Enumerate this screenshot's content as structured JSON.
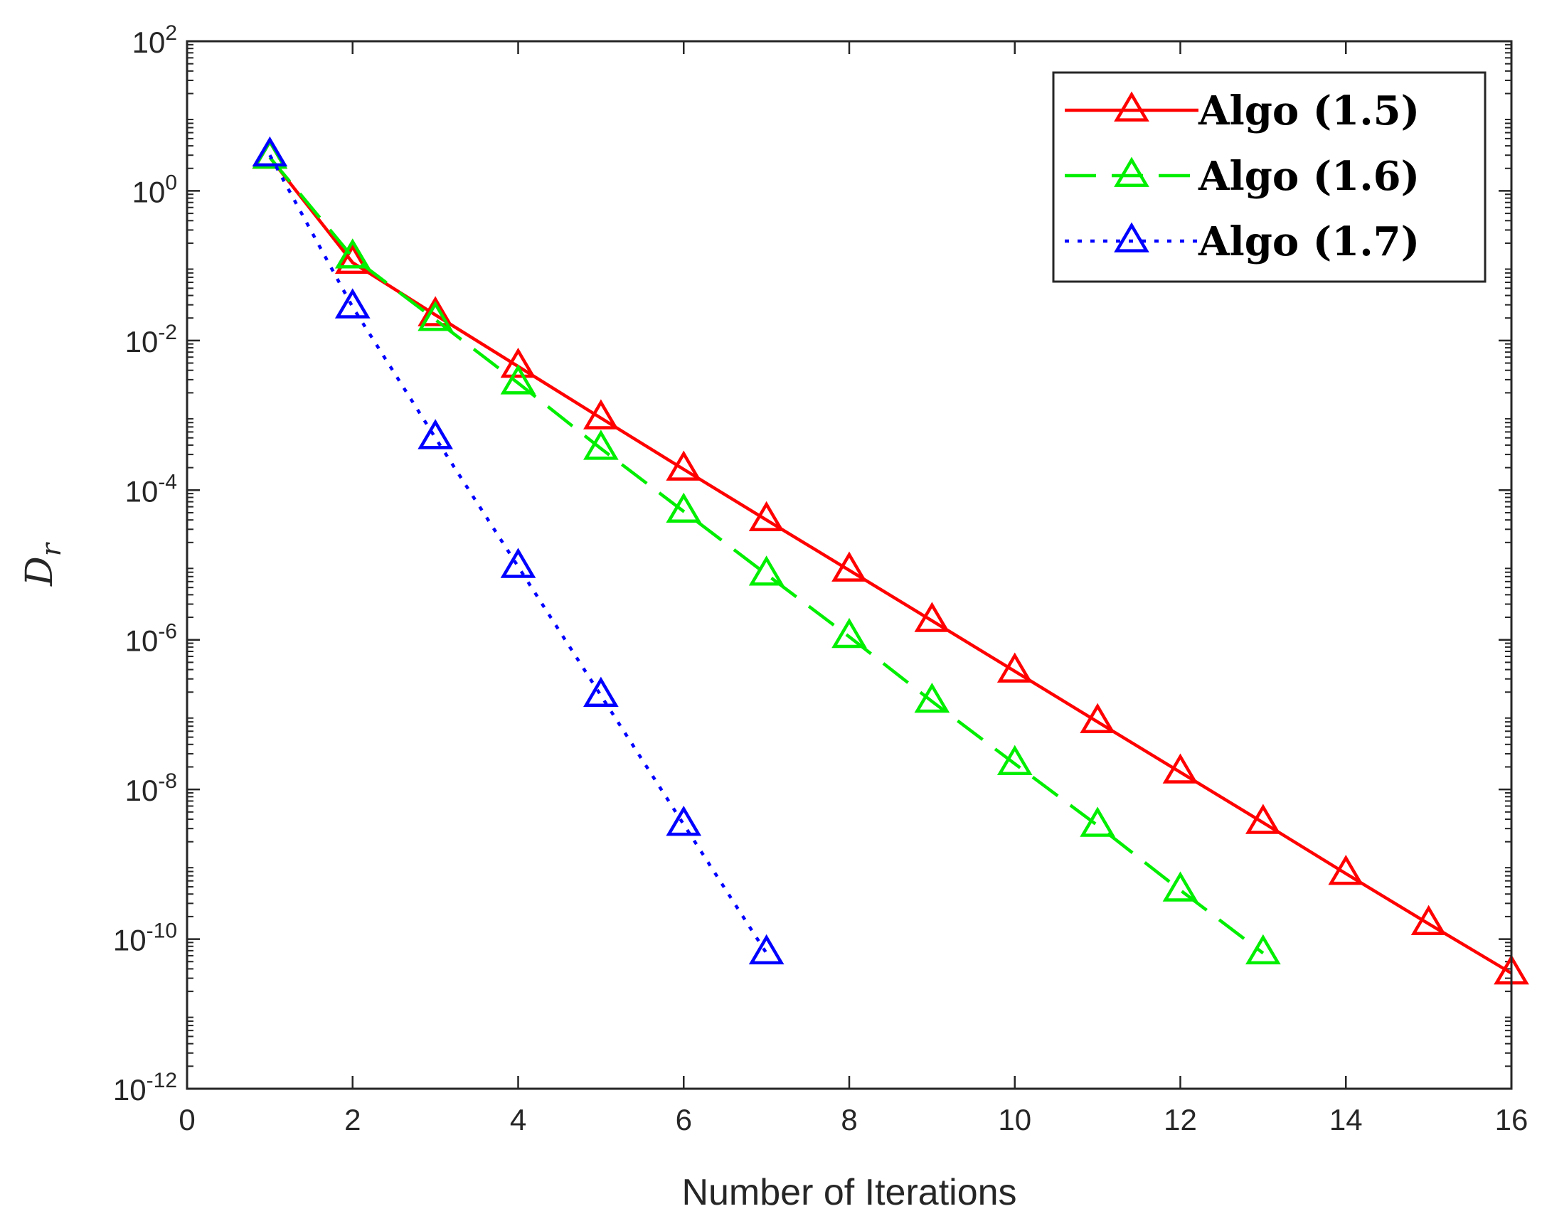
{
  "chart_data": {
    "type": "line",
    "title": "",
    "xlabel": "Number of Iterations",
    "ylabel_base": "D",
    "ylabel_sub": "r",
    "xlim": [
      0,
      16
    ],
    "ylim_exp": [
      -12,
      2
    ],
    "y_scale": "log",
    "x_ticks": [
      {
        "value": 0,
        "label": "0"
      },
      {
        "value": 2,
        "label": "2"
      },
      {
        "value": 4,
        "label": "4"
      },
      {
        "value": 6,
        "label": "6"
      },
      {
        "value": 8,
        "label": "8"
      },
      {
        "value": 10,
        "label": "10"
      },
      {
        "value": 12,
        "label": "12"
      },
      {
        "value": 14,
        "label": "14"
      },
      {
        "value": 16,
        "label": "16"
      }
    ],
    "y_ticks": [
      {
        "exp": 2,
        "base": "10",
        "sup": "2"
      },
      {
        "exp": 0,
        "base": "10",
        "sup": "0"
      },
      {
        "exp": -2,
        "base": "10",
        "sup": "-2"
      },
      {
        "exp": -4,
        "base": "10",
        "sup": "-4"
      },
      {
        "exp": -6,
        "base": "10",
        "sup": "-6"
      },
      {
        "exp": -8,
        "base": "10",
        "sup": "-8"
      },
      {
        "exp": -10,
        "base": "10",
        "sup": "-10"
      },
      {
        "exp": -12,
        "base": "10",
        "sup": "-12"
      }
    ],
    "grid": false,
    "legend_position": "top-right",
    "series": [
      {
        "name": "Algo (1.5)",
        "color": "#ff0000",
        "line_style": "solid",
        "marker": "triangle",
        "x": [
          1,
          2,
          3,
          4,
          5,
          6,
          7,
          8,
          9,
          10,
          11,
          12,
          13,
          14,
          15,
          16
        ],
        "y": [
          2.8,
          0.11,
          0.022,
          0.0045,
          0.00092,
          0.00019,
          4e-05,
          8.5e-06,
          1.8e-06,
          3.8e-07,
          8e-08,
          1.7e-08,
          3.6e-09,
          7.5e-10,
          1.6e-10,
          3.5e-11
        ]
      },
      {
        "name": "Algo (1.6)",
        "color": "#00ee00",
        "line_style": "dashed",
        "marker": "triangle",
        "x": [
          1,
          2,
          3,
          4,
          5,
          6,
          7,
          8,
          9,
          10,
          11,
          12,
          13
        ],
        "y": [
          2.8,
          0.13,
          0.019,
          0.0027,
          0.00036,
          5.2e-05,
          7.5e-06,
          1.1e-06,
          1.5e-07,
          2.2e-08,
          3.3e-09,
          4.5e-10,
          6.5e-11
        ]
      },
      {
        "name": "Algo (1.7)",
        "color": "#0000ff",
        "line_style": "dotted",
        "marker": "triangle",
        "x": [
          1,
          2,
          3,
          4,
          5,
          6,
          7
        ],
        "y": [
          3.0,
          0.028,
          0.0005,
          9.5e-06,
          1.8e-07,
          3.4e-09,
          6.5e-11
        ]
      }
    ]
  }
}
